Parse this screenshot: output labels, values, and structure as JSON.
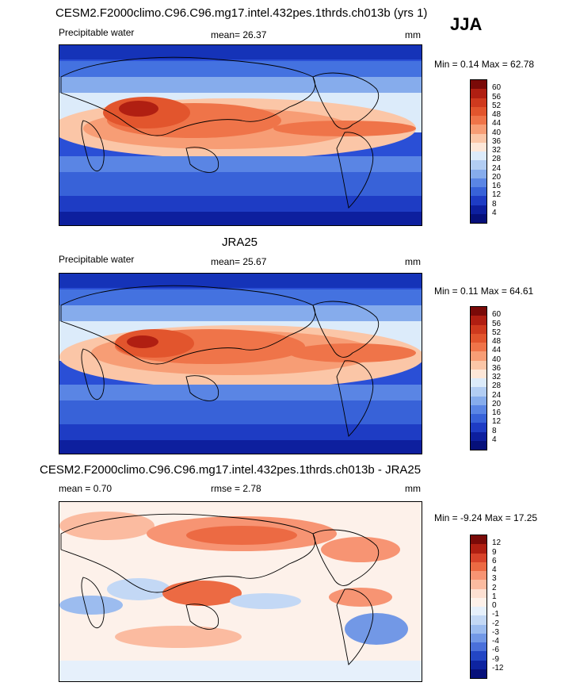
{
  "season": "JJA",
  "panels": [
    {
      "title": "CESM2.F2000climo.C96.C96.mg17.intel.432pes.1thrds.ch013b (yrs 1)",
      "variable": "Precipitable water",
      "mean": "mean=  26.37",
      "unit": "mm",
      "minmax": "Min =   0.14 Max =  62.78",
      "colorbar": {
        "levels": [
          "60",
          "56",
          "52",
          "48",
          "44",
          "40",
          "36",
          "32",
          "28",
          "24",
          "20",
          "16",
          "12",
          "8",
          "4"
        ],
        "colors": [
          "#7a0a08",
          "#b01f12",
          "#cf3a1e",
          "#e2552d",
          "#ef7449",
          "#f79d75",
          "#fbc6a7",
          "#fde7d8",
          "#dcebfa",
          "#b2cdf3",
          "#86acec",
          "#5a85e4",
          "#3862d8",
          "#1e3cc4",
          "#0d1f9e",
          "#06107a"
        ]
      }
    },
    {
      "title": "JRA25",
      "variable": "Precipitable water",
      "mean": "mean=  25.67",
      "unit": "mm",
      "minmax": "Min =   0.11 Max =  64.61",
      "colorbar": {
        "levels": [
          "60",
          "56",
          "52",
          "48",
          "44",
          "40",
          "36",
          "32",
          "28",
          "24",
          "20",
          "16",
          "12",
          "8",
          "4"
        ],
        "colors": [
          "#7a0a08",
          "#b01f12",
          "#cf3a1e",
          "#e2552d",
          "#ef7449",
          "#f79d75",
          "#fbc6a7",
          "#fde7d8",
          "#dcebfa",
          "#b2cdf3",
          "#86acec",
          "#5a85e4",
          "#3862d8",
          "#1e3cc4",
          "#0d1f9e",
          "#06107a"
        ]
      }
    },
    {
      "title": "CESM2.F2000climo.C96.C96.mg17.intel.432pes.1thrds.ch013b - JRA25",
      "mean": "mean =   0.70",
      "rmse": "rmse =   2.78",
      "unit": "mm",
      "minmax": "Min =  -9.24 Max =  17.25",
      "colorbar": {
        "levels": [
          "12",
          "9",
          "6",
          "4",
          "3",
          "2",
          "1",
          "0",
          "-1",
          "-2",
          "-3",
          "-4",
          "-6",
          "-9",
          "-12"
        ],
        "colors": [
          "#7a0a08",
          "#b01f12",
          "#d8432a",
          "#ec6a43",
          "#f79473",
          "#fbbba0",
          "#fde0d2",
          "#fdf1ea",
          "#e6f0fb",
          "#c3d8f5",
          "#9cbcef",
          "#7298e6",
          "#4a70da",
          "#2346c4",
          "#0e24a0",
          "#06107a"
        ]
      }
    }
  ]
}
